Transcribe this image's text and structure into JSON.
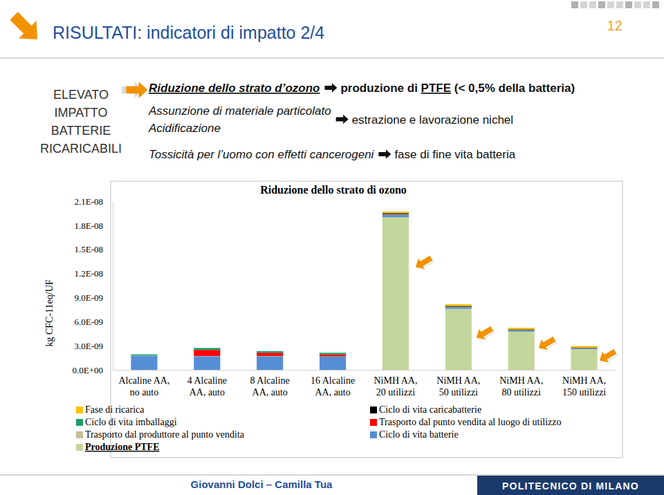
{
  "slide": {
    "title": "RISULTATI: indicatori di impatto 2/4",
    "page_number": "12",
    "side_label": [
      "ELEVATO",
      "IMPATTO",
      "BATTERIE",
      "RICARICABILI"
    ],
    "findings": [
      {
        "causes": [
          "Riduzione dello strato d’ozono"
        ],
        "effect": [
          "produzione di ",
          "PTFE",
          " (< 0,5% della batteria)"
        ]
      },
      {
        "causes": [
          "Assunzione di materiale particolato",
          "Acidificazione"
        ],
        "effect": [
          "estrazione e lavorazione nichel"
        ]
      },
      {
        "causes": [
          "Tossicità per l’uomo con effetti cancerogeni"
        ],
        "effect": [
          "fase di fine vita batteria"
        ]
      }
    ],
    "authors": "Giovanni Dolci – Camilla Tua",
    "institution": "POLITECNICO DI MILANO"
  },
  "chart_data": {
    "type": "bar",
    "stacked": true,
    "title": "Riduzione dello strato di ozono",
    "y_label": "kg CFC-11eq/UF",
    "categories": [
      "Alcaline AA,\nno auto",
      "4 Alcaline\nAA, auto",
      "8 Alcaline\nAA, auto",
      "16 Alcaline\nAA, auto",
      "NiMH AA,\n20 utilizzi",
      "NiMH AA,\n50 utilizzi",
      "NiMH AA,\n80 utilizzi",
      "NiMH AA,\n150 utilizzi"
    ],
    "series": [
      {
        "name": "Produzione PTFE",
        "color": "#c3d69b",
        "values": [
          0,
          0,
          0,
          0,
          1.9e-08,
          7.6e-09,
          4.75e-09,
          2.55e-09
        ]
      },
      {
        "name": "Ciclo di vita batterie",
        "color": "#558ed5",
        "values": [
          1.75e-09,
          1.7e-09,
          1.7e-09,
          1.65e-09,
          3e-10,
          2e-10,
          1.5e-10,
          1e-10
        ]
      },
      {
        "name": "Trasporto dal produttore al punto vendita",
        "color": "#c4bd97",
        "values": [
          3e-11,
          3e-11,
          3e-11,
          3e-11,
          3e-11,
          2e-11,
          2e-11,
          2e-11
        ]
      },
      {
        "name": "Trasporto dal punto vendita al luogo di utilizzo",
        "color": "#ff0000",
        "values": [
          0,
          7.5e-10,
          4e-10,
          2.5e-10,
          3e-11,
          2e-11,
          2e-11,
          2e-11
        ]
      },
      {
        "name": "Ciclo di vita imballaggi",
        "color": "#1e9e6a",
        "values": [
          1.5e-10,
          2.5e-10,
          2e-10,
          2e-10,
          3e-11,
          2e-11,
          2e-11,
          2e-11
        ]
      },
      {
        "name": "Ciclo di vita caricabatterie",
        "color": "#000000",
        "values": [
          0,
          0,
          0,
          0,
          1.2e-10,
          1e-10,
          8e-11,
          6e-11
        ]
      },
      {
        "name": "Fase di ricarica",
        "color": "#ffc000",
        "values": [
          0,
          0,
          0,
          0,
          2e-10,
          2e-10,
          2e-10,
          2e-10
        ]
      }
    ],
    "ylim": [
      0,
      2.1e-08
    ],
    "yticks": [
      {
        "value": 0,
        "label": "0.0E+00"
      },
      {
        "value": 3e-09,
        "label": "3.0E-09"
      },
      {
        "value": 6e-09,
        "label": "6.0E-09"
      },
      {
        "value": 9e-09,
        "label": "9.0E-09"
      },
      {
        "value": 1.2e-08,
        "label": "1.2E-08"
      },
      {
        "value": 1.5e-08,
        "label": "1.5E-08"
      },
      {
        "value": 1.8e-08,
        "label": "1.8E-08"
      },
      {
        "value": 2.1e-08,
        "label": "2.1E-08"
      }
    ],
    "grid": false,
    "legend": "bottom"
  }
}
